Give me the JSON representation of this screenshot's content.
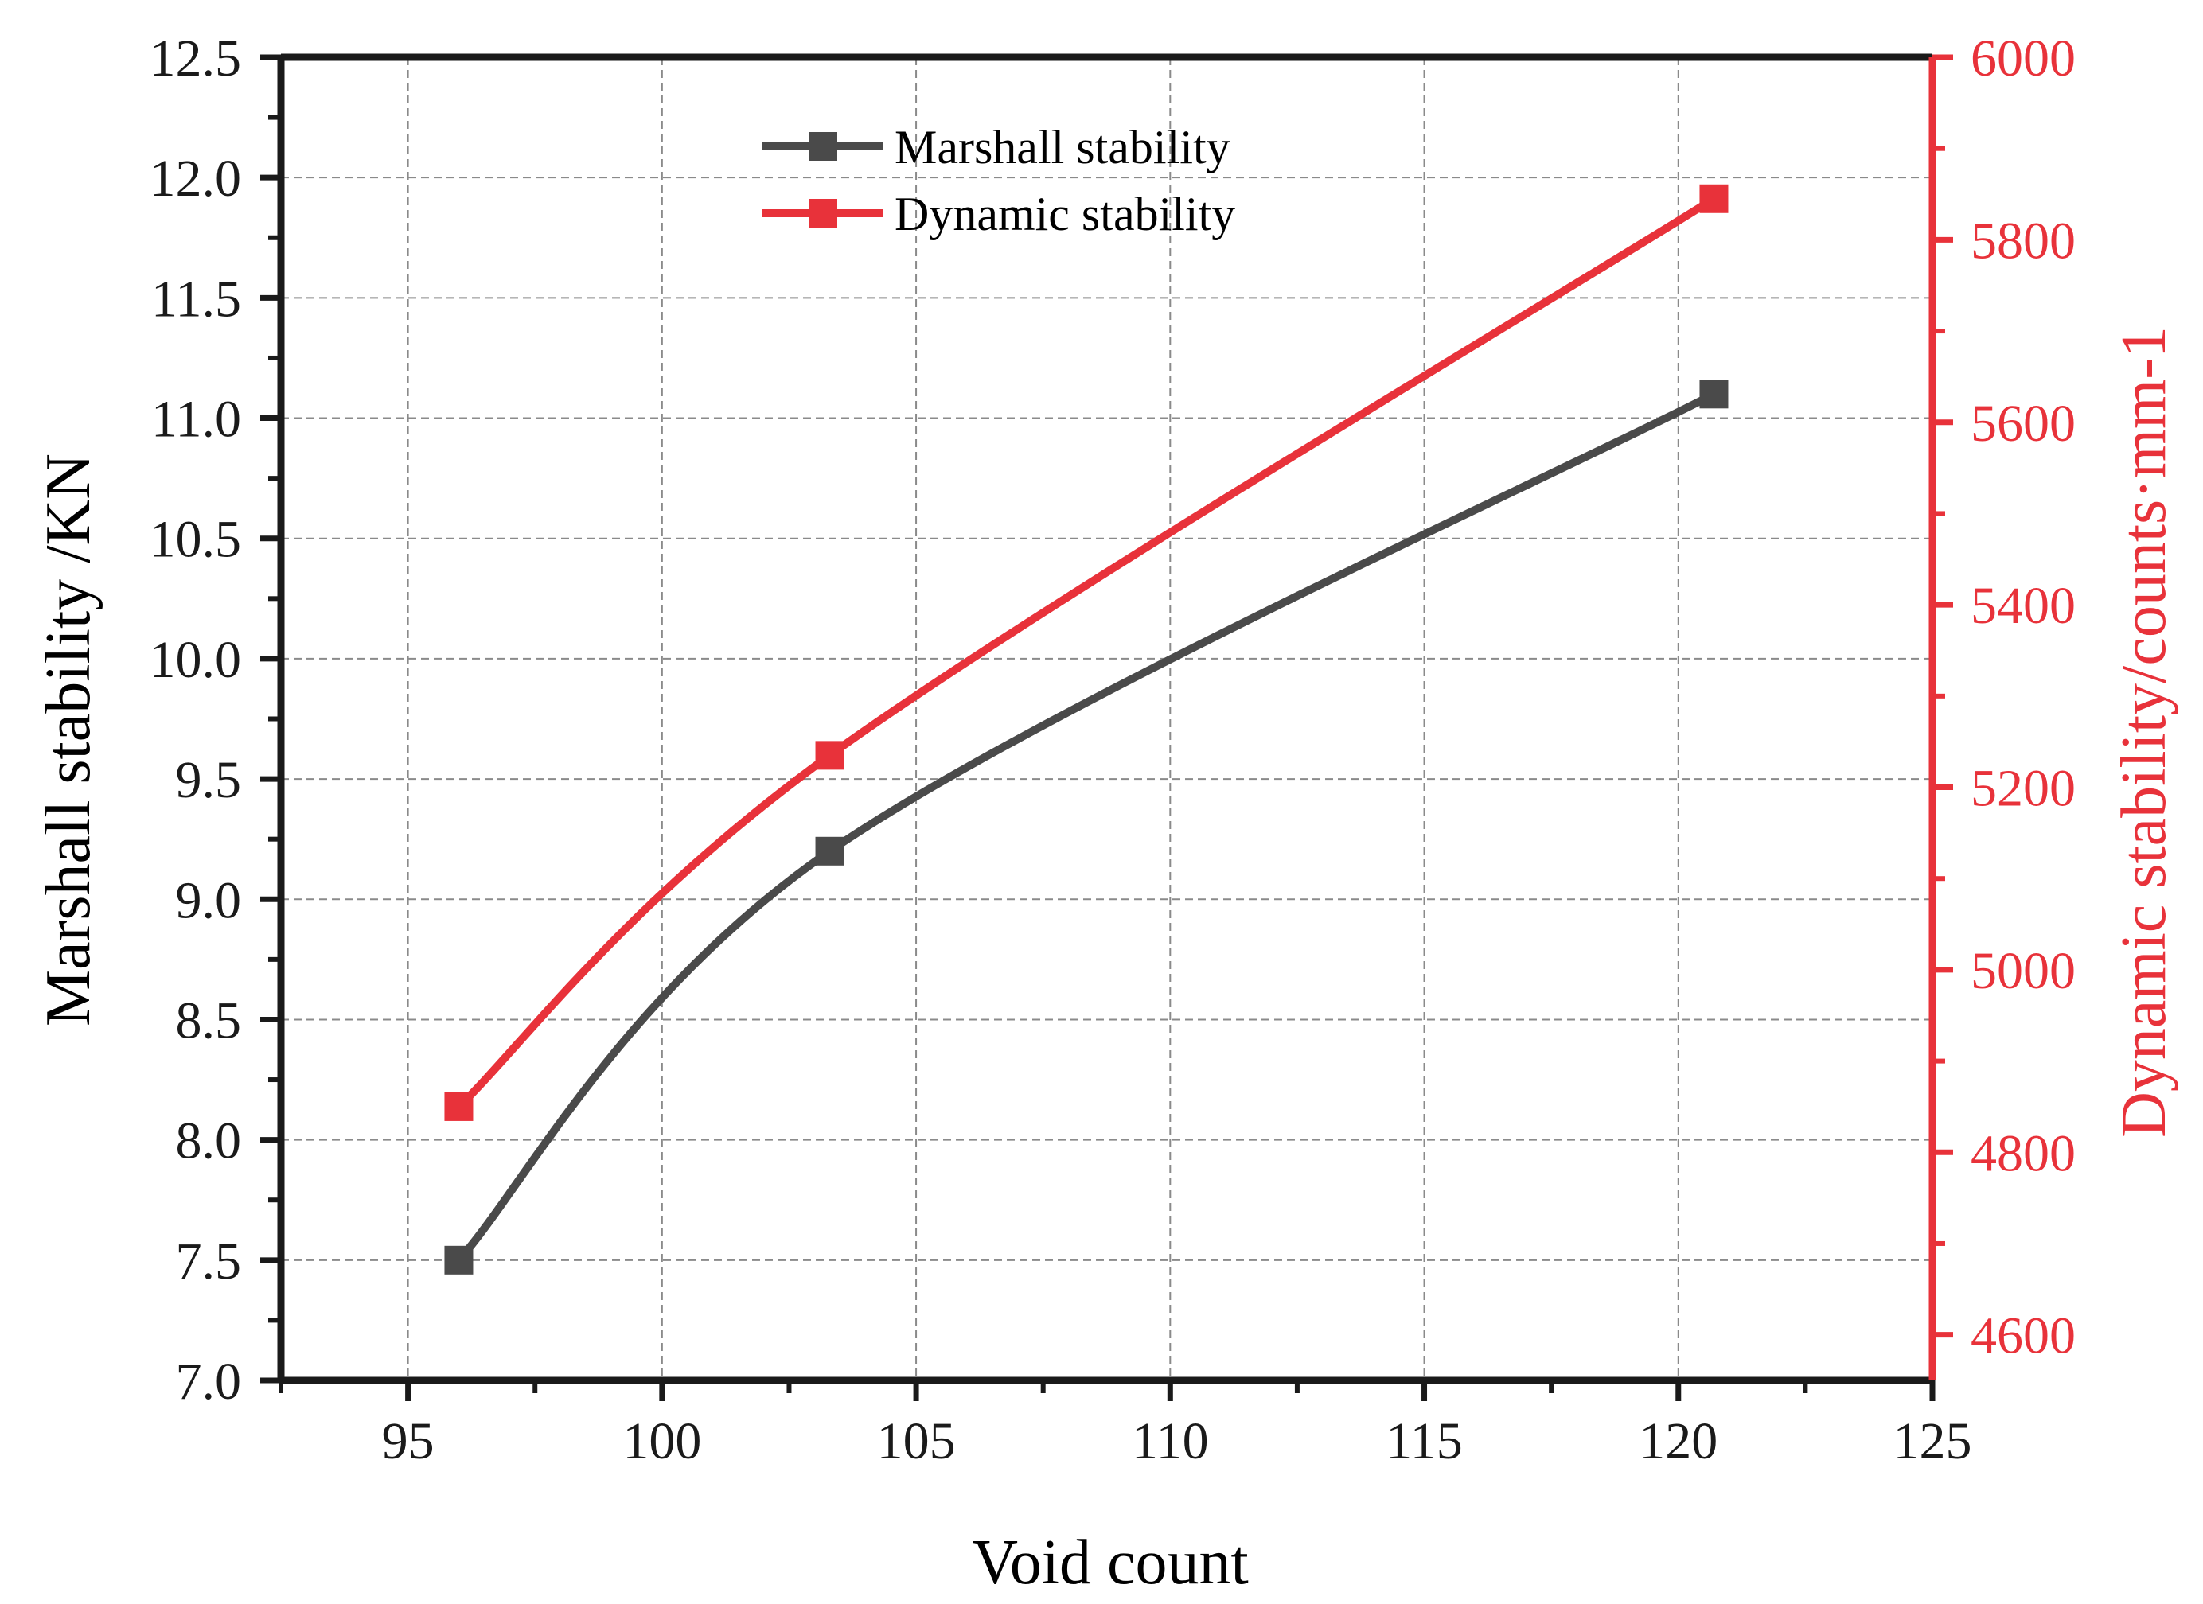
{
  "colors": {
    "marshall": "#4a4a4a",
    "dynamic": "#e8323a",
    "axis": "#1a1a1a",
    "grid": "#8a8a8a",
    "background": "#ffffff"
  },
  "chart_data": {
    "type": "line",
    "title": "",
    "xlabel": "Void count",
    "ylabel": "Marshall stability /KN",
    "y2label": "Dynamic stability/counts·mm-1",
    "xlim": [
      92.5,
      125
    ],
    "ylim": [
      7.0,
      12.5
    ],
    "y2lim": [
      4550,
      6000
    ],
    "x_ticks": [
      95,
      100,
      105,
      110,
      115,
      120,
      125
    ],
    "x_tick_labels": [
      "95",
      "100",
      "105",
      "110",
      "115",
      "120",
      "125"
    ],
    "y_ticks": [
      7.0,
      7.5,
      8.0,
      8.5,
      9.0,
      9.5,
      10.0,
      10.5,
      11.0,
      11.5,
      12.0,
      12.5
    ],
    "y_tick_labels": [
      "7.0",
      "7.5",
      "8.0",
      "8.5",
      "9.0",
      "9.5",
      "10.0",
      "10.5",
      "11.0",
      "11.5",
      "12.0",
      "12.5"
    ],
    "y2_ticks": [
      4600,
      4800,
      5000,
      5200,
      5400,
      5600,
      5800,
      6000
    ],
    "y2_tick_labels": [
      "4600",
      "4800",
      "5000",
      "5200",
      "5400",
      "5600",
      "5800",
      "6000"
    ],
    "grid": true,
    "legend_position": "top-center",
    "series": [
      {
        "name": "Marshall stability",
        "axis": "left",
        "x": [
          96.0,
          103.3,
          120.7
        ],
        "values": [
          7.5,
          9.2,
          11.1
        ],
        "marker": "square",
        "smooth": true
      },
      {
        "name": "Dynamic stability",
        "axis": "right",
        "x": [
          96.0,
          103.3,
          120.7
        ],
        "values": [
          4850,
          5235,
          5845
        ],
        "marker": "square",
        "smooth": true
      }
    ]
  }
}
